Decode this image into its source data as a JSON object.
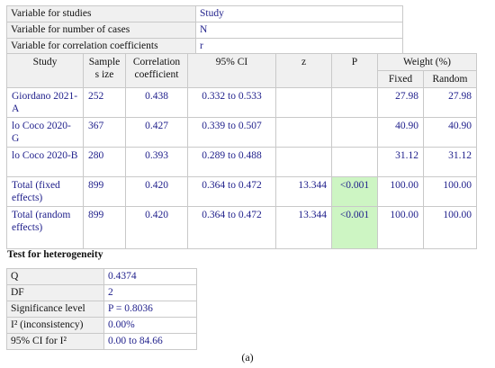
{
  "variables": [
    {
      "label": "Variable for studies",
      "value": "Study"
    },
    {
      "label": "Variable for number of cases",
      "value": "N"
    },
    {
      "label": "Variable for correlation coefficients",
      "value": "r"
    }
  ],
  "main_table": {
    "headers": {
      "study": "Study",
      "sample_size": "Sample s ize",
      "correlation": "Correlation coefficient",
      "ci": "95% CI",
      "z": "z",
      "p": "P",
      "weight": "Weight (%)",
      "fixed": "Fixed",
      "random": "Random"
    },
    "rows": [
      {
        "study": "Giordano 2021-A",
        "n": "252",
        "r": "0.438",
        "ci": "0.332 to 0.533",
        "z": "",
        "p": "",
        "fixed": "27.98",
        "random": "27.98"
      },
      {
        "study": "lo Coco 2020-G",
        "n": "367",
        "r": "0.427",
        "ci": "0.339 to 0.507",
        "z": "",
        "p": "",
        "fixed": "40.90",
        "random": "40.90"
      },
      {
        "study": "lo Coco 2020-B",
        "n": "280",
        "r": "0.393",
        "ci": "0.289 to 0.488",
        "z": "",
        "p": "",
        "fixed": "31.12",
        "random": "31.12"
      },
      {
        "study": "Total (fixed effects)",
        "n": "899",
        "r": "0.420",
        "ci": "0.364 to 0.472",
        "z": "13.344",
        "p": "<0.001",
        "fixed": "100.00",
        "random": "100.00"
      },
      {
        "study": "Total (random effects)",
        "n": "899",
        "r": "0.420",
        "ci": "0.364 to 0.472",
        "z": "13.344",
        "p": "<0.001",
        "fixed": "100.00",
        "random": "100.00"
      }
    ],
    "highlight_color": "#cdf5c3"
  },
  "heterogeneity": {
    "title": "Test for heterogeneity",
    "rows": [
      {
        "label": "Q",
        "value": "0.4374"
      },
      {
        "label": "DF",
        "value": "2"
      },
      {
        "label": "Significance level",
        "value": "P = 0.8036"
      },
      {
        "label": "I² (inconsistency)",
        "value": "0.00%"
      },
      {
        "label": "95% CI for I²",
        "value": "0.00 to 84.66"
      }
    ]
  },
  "caption": "(a)",
  "colors": {
    "value_text": "#1d1d8a",
    "header_bg": "#f0f0f0",
    "border": "#c9c9c9"
  }
}
